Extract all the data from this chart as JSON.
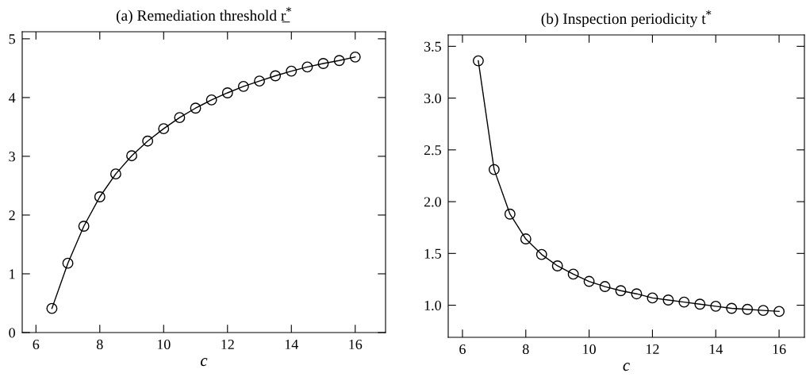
{
  "chart_data": [
    {
      "type": "line",
      "title": "(a) Remediation threshold r̲$^{*}$",
      "xlabel": "c",
      "marker": "circle",
      "line_style": "solid",
      "grid": false,
      "x": [
        6.5,
        7,
        7.5,
        8,
        8.5,
        9,
        9.5,
        10,
        10.5,
        11,
        11.5,
        12,
        12.5,
        13,
        13.5,
        14,
        14.5,
        15,
        15.5,
        16
      ],
      "series": [
        {
          "color": "#000000",
          "values": [
            0.41,
            1.18,
            1.81,
            2.31,
            2.7,
            3.01,
            3.26,
            3.47,
            3.66,
            3.82,
            3.96,
            4.08,
            4.19,
            4.28,
            4.37,
            4.45,
            4.52,
            4.58,
            4.63,
            4.69
          ]
        }
      ],
      "xlim": [
        5.57,
        16.95
      ],
      "xticks": [
        6,
        8,
        10,
        12,
        14,
        16
      ],
      "ylim": [
        0,
        5.12
      ],
      "yticks": [
        0,
        1,
        2,
        3,
        4,
        5
      ]
    },
    {
      "type": "line",
      "title": "(b) Inspection periodicity t$^{*}$",
      "xlabel": "c",
      "marker": "circle",
      "line_style": "solid",
      "grid": false,
      "x": [
        6.5,
        7,
        7.5,
        8,
        8.5,
        9,
        9.5,
        10,
        10.5,
        11,
        11.5,
        12,
        12.5,
        13,
        13.5,
        14,
        14.5,
        15,
        15.5,
        16
      ],
      "series": [
        {
          "color": "#000000",
          "values": [
            3.36,
            2.31,
            1.88,
            1.64,
            1.49,
            1.38,
            1.3,
            1.23,
            1.18,
            1.14,
            1.11,
            1.07,
            1.05,
            1.03,
            1.01,
            0.99,
            0.97,
            0.96,
            0.95,
            0.94
          ]
        }
      ],
      "xlim": [
        5.55,
        16.8
      ],
      "xticks": [
        6,
        8,
        10,
        12,
        14,
        16
      ],
      "ylim": [
        0.69,
        3.61
      ],
      "yticks": [
        {
          "value": 1.0,
          "label": "1.0"
        },
        1.5,
        {
          "value": 2.0,
          "label": "2.0"
        },
        2.5,
        {
          "value": 3.0,
          "label": "3.0"
        },
        3.5
      ]
    }
  ]
}
